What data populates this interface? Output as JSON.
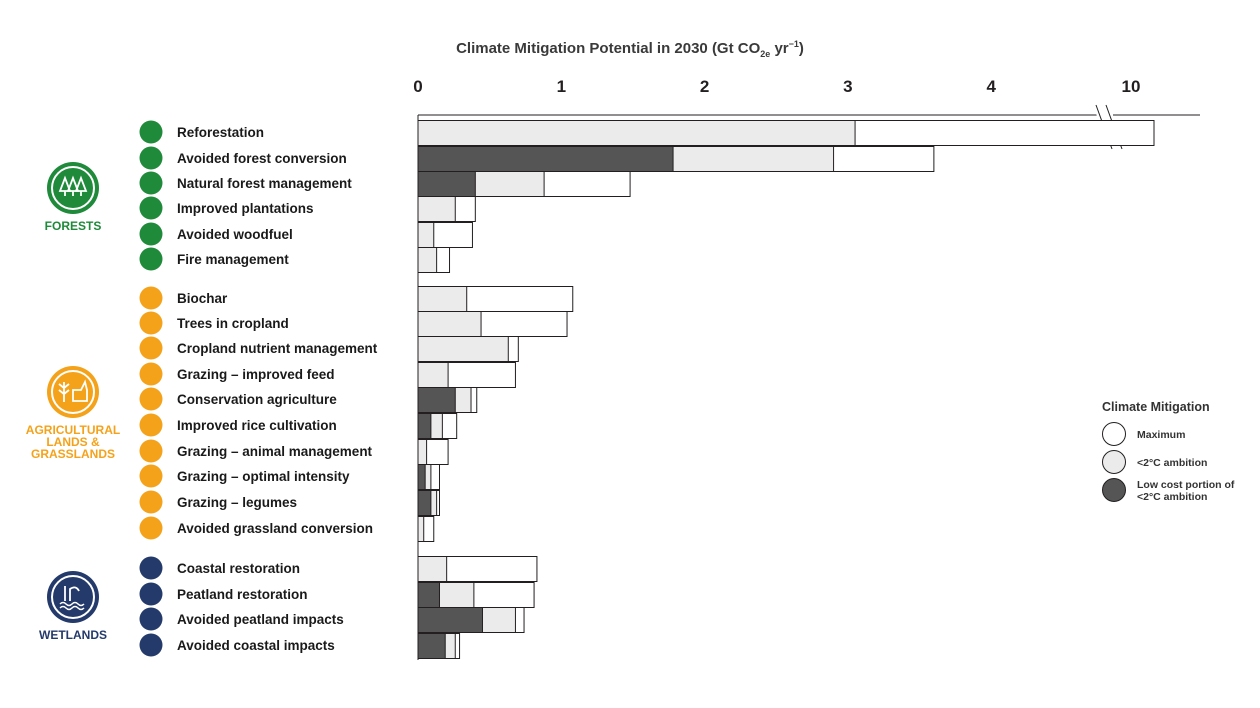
{
  "chart_data": {
    "type": "bar",
    "orientation": "horizontal",
    "title_prefix": "Climate Mitigation Potential in 2030 (Gt CO",
    "title_sub": "2e",
    "title_mid": " yr",
    "title_sup": "−1",
    "title_suffix": ")",
    "x_ticks": [
      "0",
      "1",
      "2",
      "3",
      "4",
      "10"
    ],
    "xlim": [
      0,
      10.1
    ],
    "axis_break_between": [
      4.65,
      9.9
    ],
    "groups": [
      {
        "name": "FORESTS",
        "lines": [
          "FORESTS"
        ],
        "color": "#1e8a3a",
        "icon": "trees-icon"
      },
      {
        "name": "AGRICULTURAL LANDS & GRASSLANDS",
        "lines": [
          "AGRICULTURAL",
          "LANDS &",
          "GRASSLANDS"
        ],
        "color": "#f5a21b",
        "icon": "wheat-cow-icon"
      },
      {
        "name": "WETLANDS",
        "lines": [
          "WETLANDS"
        ],
        "color": "#243a6b",
        "icon": "reeds-water-icon"
      }
    ],
    "categories": [
      {
        "label": "Reforestation",
        "group": 0,
        "low_cost": 0,
        "ambition": 3.05,
        "maximum": 10.1
      },
      {
        "label": "Avoided forest conversion",
        "group": 0,
        "low_cost": 1.78,
        "ambition": 2.9,
        "maximum": 3.6
      },
      {
        "label": "Natural forest management",
        "group": 0,
        "low_cost": 0.4,
        "ambition": 0.88,
        "maximum": 1.48
      },
      {
        "label": "Improved plantations",
        "group": 0,
        "low_cost": 0,
        "ambition": 0.26,
        "maximum": 0.4
      },
      {
        "label": "Avoided woodfuel",
        "group": 0,
        "low_cost": 0,
        "ambition": 0.11,
        "maximum": 0.38
      },
      {
        "label": "Fire management",
        "group": 0,
        "low_cost": 0,
        "ambition": 0.13,
        "maximum": 0.22
      },
      {
        "label": "Biochar",
        "group": 1,
        "low_cost": 0,
        "ambition": 0.34,
        "maximum": 1.08
      },
      {
        "label": "Trees in cropland",
        "group": 1,
        "low_cost": 0,
        "ambition": 0.44,
        "maximum": 1.04
      },
      {
        "label": "Cropland nutrient management",
        "group": 1,
        "low_cost": 0,
        "ambition": 0.63,
        "maximum": 0.7
      },
      {
        "label": "Grazing – improved feed",
        "group": 1,
        "low_cost": 0,
        "ambition": 0.21,
        "maximum": 0.68
      },
      {
        "label": "Conservation agriculture",
        "group": 1,
        "low_cost": 0.26,
        "ambition": 0.37,
        "maximum": 0.41
      },
      {
        "label": "Improved rice cultivation",
        "group": 1,
        "low_cost": 0.09,
        "ambition": 0.17,
        "maximum": 0.27
      },
      {
        "label": "Grazing – animal management",
        "group": 1,
        "low_cost": 0,
        "ambition": 0.06,
        "maximum": 0.21
      },
      {
        "label": "Grazing – optimal intensity",
        "group": 1,
        "low_cost": 0.05,
        "ambition": 0.09,
        "maximum": 0.15
      },
      {
        "label": "Grazing – legumes",
        "group": 1,
        "low_cost": 0.09,
        "ambition": 0.13,
        "maximum": 0.15
      },
      {
        "label": "Avoided grassland conversion",
        "group": 1,
        "low_cost": 0,
        "ambition": 0.04,
        "maximum": 0.11
      },
      {
        "label": "Coastal restoration",
        "group": 2,
        "low_cost": 0,
        "ambition": 0.2,
        "maximum": 0.83
      },
      {
        "label": "Peatland restoration",
        "group": 2,
        "low_cost": 0.15,
        "ambition": 0.39,
        "maximum": 0.81
      },
      {
        "label": "Avoided peatland impacts",
        "group": 2,
        "low_cost": 0.45,
        "ambition": 0.68,
        "maximum": 0.74
      },
      {
        "label": "Avoided coastal impacts",
        "group": 2,
        "low_cost": 0.19,
        "ambition": 0.26,
        "maximum": 0.29
      }
    ],
    "legend": {
      "title": "Climate Mitigation",
      "placement": "right",
      "items": [
        {
          "label": [
            "Maximum"
          ],
          "color": "#ffffff"
        },
        {
          "label": [
            "<2°C ambition"
          ],
          "color": "#ebebeb"
        },
        {
          "label": [
            "Low cost portion of",
            "<2°C ambition"
          ],
          "color": "#555555"
        }
      ]
    },
    "colors": {
      "maximum": "#ffffff",
      "ambition": "#ebebeb",
      "low_cost": "#555555",
      "stroke": "#231f20"
    }
  }
}
